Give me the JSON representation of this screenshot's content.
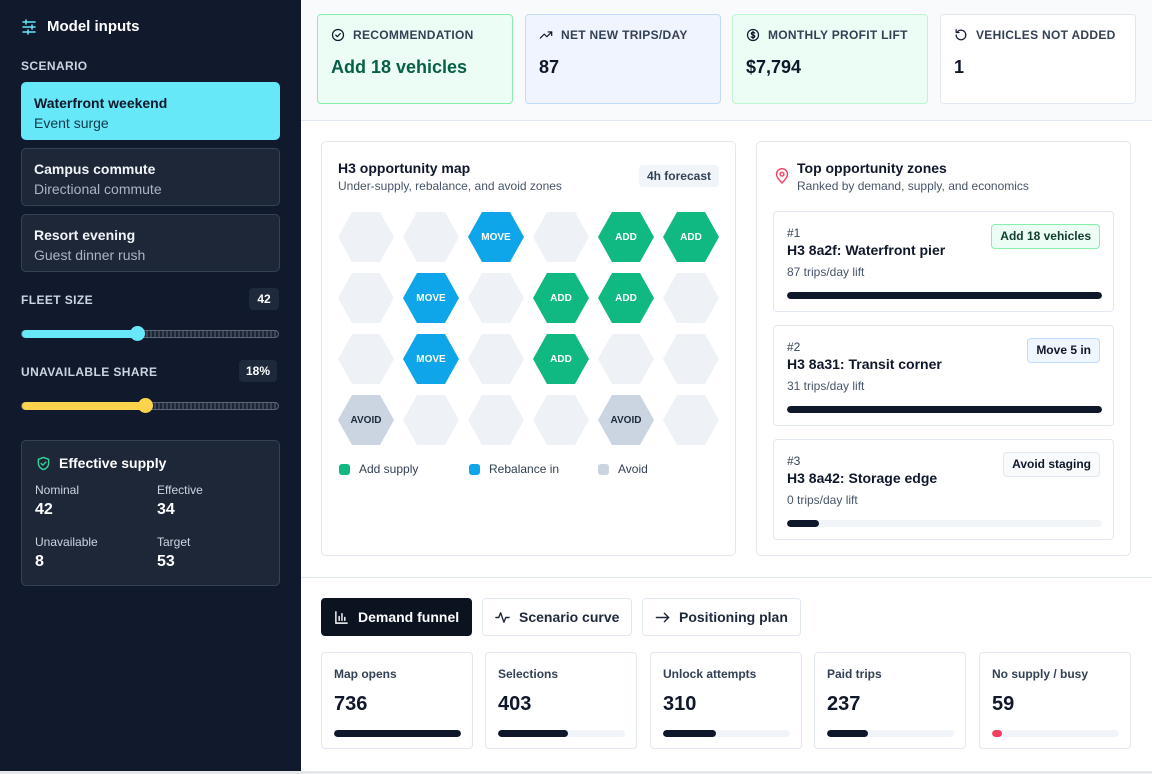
{
  "sidebar": {
    "title": "Model inputs",
    "scenario_label": "SCENARIO",
    "scenarios": [
      {
        "title": "Waterfront weekend",
        "subtitle": "Event surge",
        "active": true
      },
      {
        "title": "Campus commute",
        "subtitle": "Directional commute",
        "active": false
      },
      {
        "title": "Resort evening",
        "subtitle": "Guest dinner rush",
        "active": false
      }
    ],
    "fleet_size": {
      "label": "FLEET SIZE",
      "value": "42",
      "slider_fraction": 0.45,
      "color": "#67e8f9"
    },
    "unavailable_share": {
      "label": "UNAVAILABLE SHARE",
      "value": "18%",
      "slider_fraction": 0.48,
      "color": "#fcd34d"
    },
    "effective_supply": {
      "title": "Effective supply",
      "nominal_label": "Nominal",
      "nominal": "42",
      "effective_label": "Effective",
      "effective": "34",
      "unavailable_label": "Unavailable",
      "unavailable": "8",
      "target_label": "Target",
      "target": "53"
    }
  },
  "kpis": [
    {
      "label": "RECOMMENDATION",
      "value": "Add 18 vehicles",
      "icon": "check-circle-icon"
    },
    {
      "label": "NET NEW TRIPS/DAY",
      "value": "87",
      "icon": "trending-up-icon"
    },
    {
      "label": "MONTHLY PROFIT LIFT",
      "value": "$7,794",
      "icon": "dollar-circle-icon"
    },
    {
      "label": "VEHICLES NOT ADDED",
      "value": "1",
      "icon": "rotate-ccw-icon"
    }
  ],
  "map": {
    "title": "H3 opportunity map",
    "subtitle": "Under-supply, rebalance, and avoid zones",
    "badge": "4h forecast",
    "grid": [
      [
        "empty",
        "empty",
        "move",
        "empty",
        "add",
        "add"
      ],
      [
        "empty",
        "move",
        "empty",
        "add",
        "add",
        "empty"
      ],
      [
        "empty",
        "move",
        "empty",
        "add",
        "empty",
        "empty"
      ],
      [
        "avoid",
        "empty",
        "empty",
        "empty",
        "avoid",
        "empty"
      ]
    ],
    "cell_labels": {
      "add": "ADD",
      "move": "MOVE",
      "avoid": "AVOID"
    },
    "legend": {
      "add": "Add supply",
      "move": "Rebalance in",
      "avoid": "Avoid"
    },
    "colors": {
      "add": "#10b981",
      "move": "#0ea5e9",
      "avoid": "#cbd5e1",
      "empty": "#eef2f7"
    }
  },
  "zones": {
    "title": "Top opportunity zones",
    "subtitle": "Ranked by demand, supply, and economics",
    "items": [
      {
        "rank": "#1",
        "name": "H3 8a2f: Waterfront pier",
        "lift": "87 trips/day lift",
        "action": "Add 18 vehicles",
        "score": 1.0
      },
      {
        "rank": "#2",
        "name": "H3 8a31: Transit corner",
        "lift": "31 trips/day lift",
        "action": "Move 5 in",
        "score": 1.0
      },
      {
        "rank": "#3",
        "name": "H3 8a42: Storage edge",
        "lift": "0 trips/day lift",
        "action": "Avoid staging",
        "score": 0.1
      }
    ]
  },
  "tabs": [
    {
      "label": "Demand funnel",
      "icon": "bar-chart-icon",
      "active": true
    },
    {
      "label": "Scenario curve",
      "icon": "activity-icon",
      "active": false
    },
    {
      "label": "Positioning plan",
      "icon": "arrow-right-icon",
      "active": false
    }
  ],
  "funnel": [
    {
      "label": "Map opens",
      "value": "736",
      "fraction": 1.0
    },
    {
      "label": "Selections",
      "value": "403",
      "fraction": 0.55
    },
    {
      "label": "Unlock attempts",
      "value": "310",
      "fraction": 0.42
    },
    {
      "label": "Paid trips",
      "value": "237",
      "fraction": 0.32
    },
    {
      "label": "No supply / busy",
      "value": "59",
      "fraction": 0.08
    }
  ]
}
